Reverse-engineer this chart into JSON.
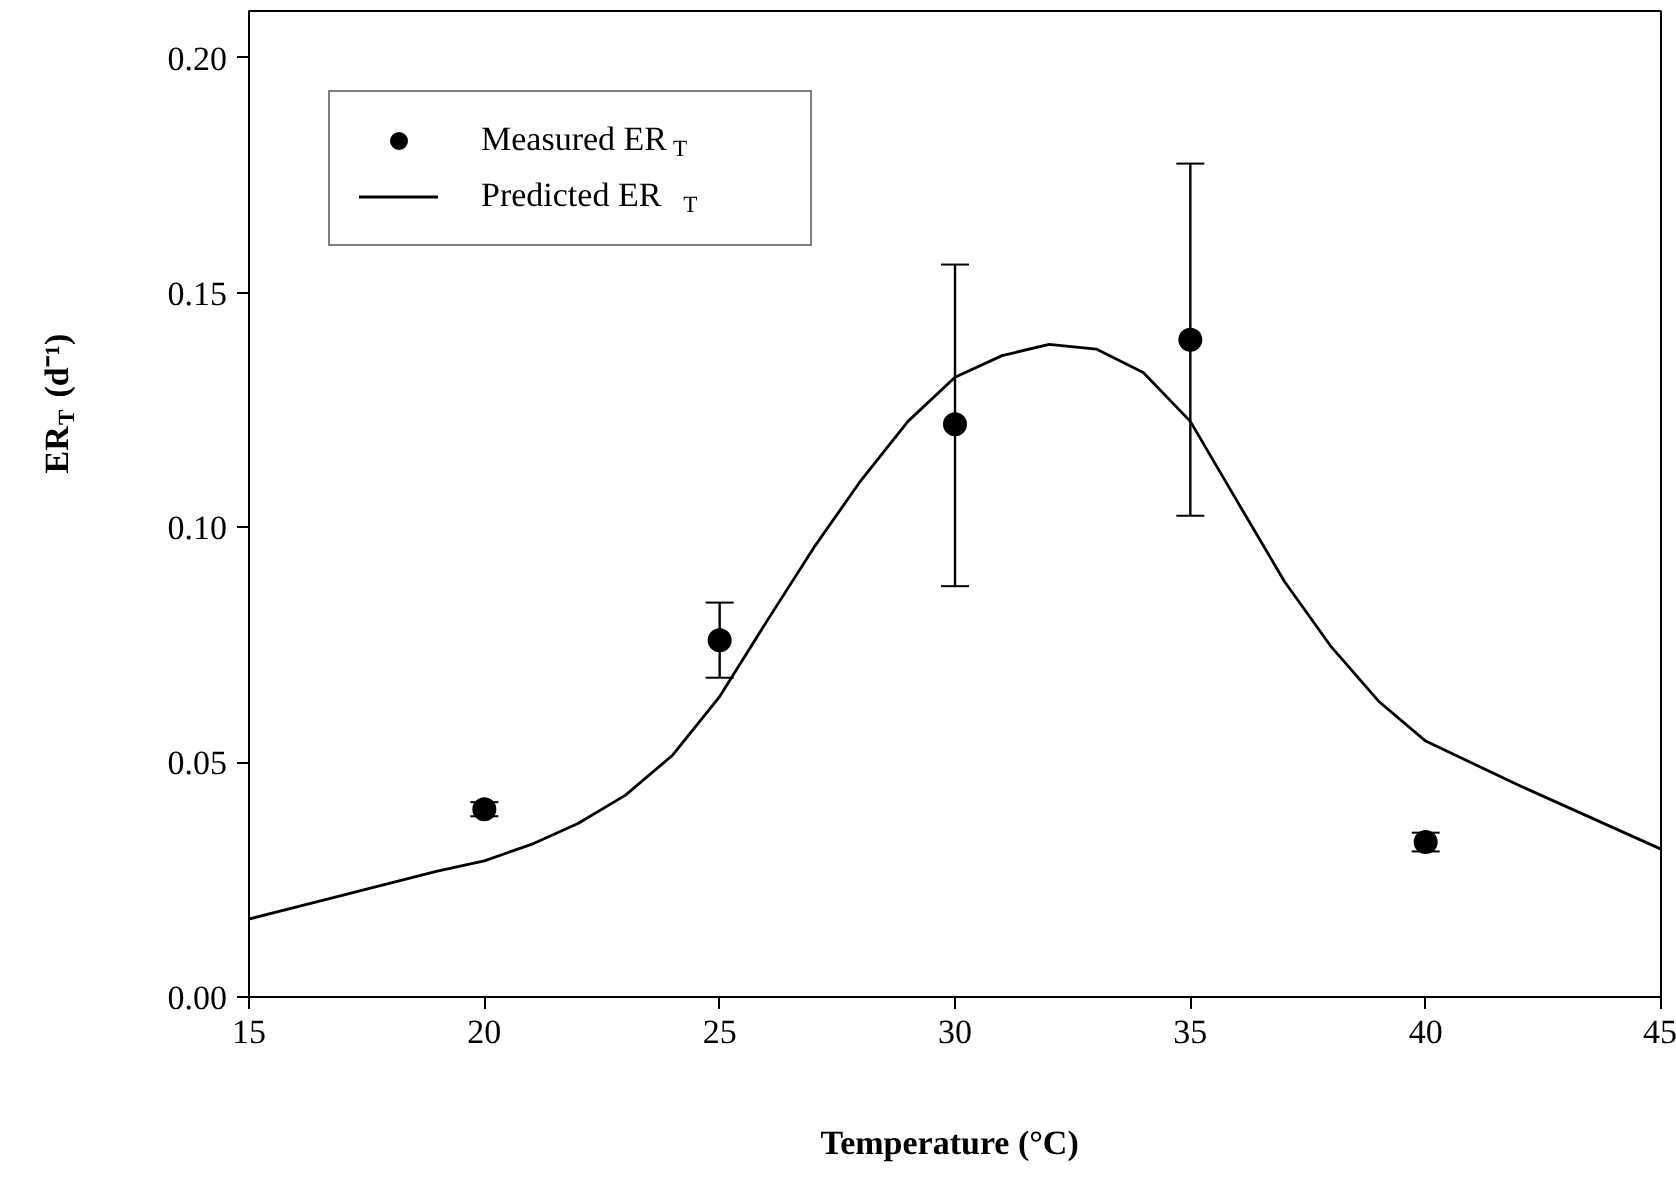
{
  "chart_data": {
    "type": "scatter",
    "xlabel": "Temperature (°C)",
    "ylabel": "ER$_{T}$ (d⁻¹)",
    "xlim": [
      15,
      45
    ],
    "ylim": [
      0,
      0.21
    ],
    "xticks": [
      15,
      20,
      25,
      30,
      35,
      40,
      45
    ],
    "yticks": [
      {
        "value": 0,
        "label": "0.00"
      },
      {
        "value": 0.05,
        "label": "0.05"
      },
      {
        "value": 0.1,
        "label": "0.10"
      },
      {
        "value": 0.15,
        "label": "0.15"
      },
      {
        "value": 0.2,
        "label": "0.20"
      }
    ],
    "grid": false,
    "legend": "top left",
    "series": [
      {
        "name": "Measured ER$_{T}$",
        "marker": "circle",
        "color": "#000000",
        "x": [
          20,
          25,
          30,
          35,
          40
        ],
        "values": [
          0.04,
          0.076,
          0.122,
          0.14,
          0.033
        ],
        "errors": [
          0.0015,
          0.008,
          [
            0.0875,
            0.156
          ],
          [
            0.1025,
            0.1775
          ],
          0.002
        ]
      },
      {
        "name": "Predicted ER$_{T}$",
        "type": "line",
        "marker": "none",
        "line_style": "solid",
        "color": "#000000",
        "x": [
          15,
          17,
          19,
          20,
          21,
          22,
          23,
          24,
          25,
          26,
          27,
          28,
          29,
          30,
          31,
          32,
          33,
          34,
          35,
          36,
          37,
          38,
          39,
          40,
          42,
          45
        ],
        "values": [
          0.0166,
          0.0217,
          0.0268,
          0.029,
          0.0325,
          0.037,
          0.043,
          0.0515,
          0.064,
          0.08,
          0.0957,
          0.11,
          0.1226,
          0.132,
          0.1366,
          0.139,
          0.138,
          0.133,
          0.1226,
          0.1055,
          0.0885,
          0.0745,
          0.063,
          0.0545,
          0.045,
          0.0315
        ]
      }
    ]
  }
}
